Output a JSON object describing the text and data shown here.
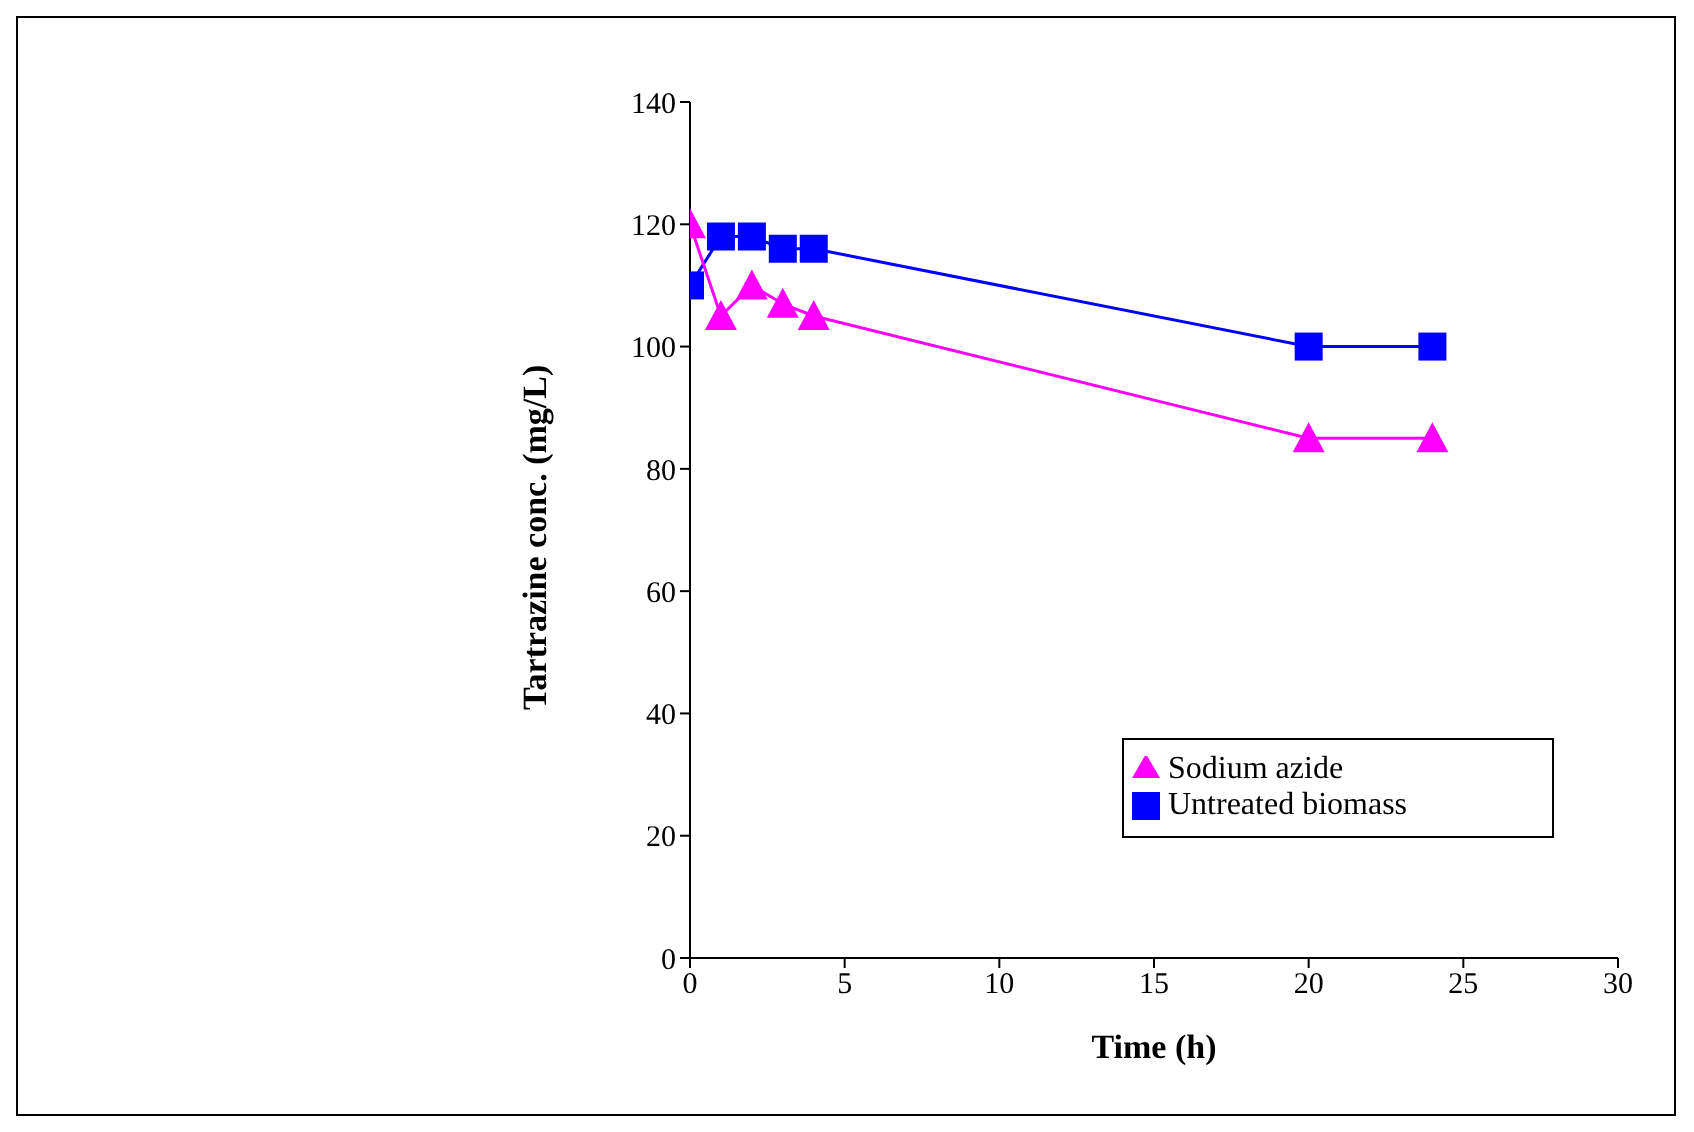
{
  "chart_data": {
    "type": "line",
    "xlabel": "Time (h)",
    "ylabel": "Tartrazine conc. (mg/L)",
    "x": [
      0,
      1,
      2,
      3,
      4,
      20,
      24
    ],
    "series": [
      {
        "name": "Untreated biomass",
        "color": "#0000ff",
        "marker": "square",
        "values": [
          110,
          118,
          118,
          116,
          116,
          100,
          100
        ]
      },
      {
        "name": "Sodium azide",
        "color": "#ff00ff",
        "marker": "triangle",
        "values": [
          120,
          105,
          110,
          107,
          105,
          85,
          85
        ]
      }
    ],
    "xlim": [
      0,
      30
    ],
    "xticks": [
      0,
      5,
      10,
      15,
      20,
      25,
      30
    ],
    "ylim": [
      0,
      140
    ],
    "yticks": [
      0,
      20,
      40,
      60,
      80,
      100,
      120,
      140
    ],
    "grid": false,
    "legend": "bottom right",
    "line_style": "solid"
  }
}
